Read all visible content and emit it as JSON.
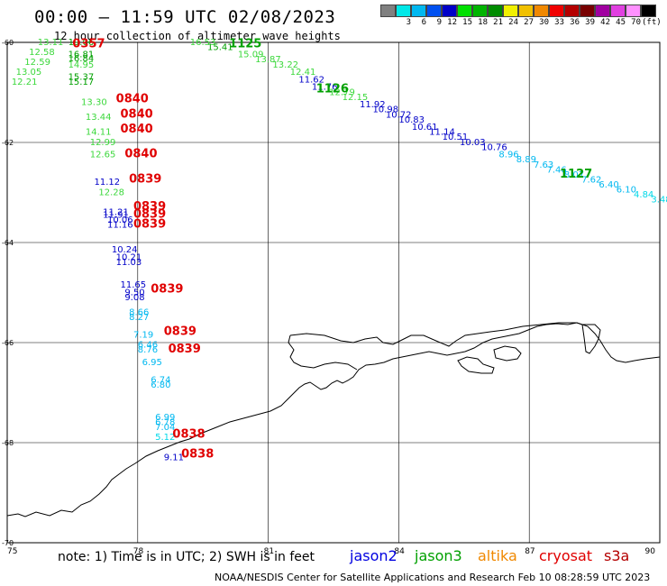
{
  "header": {
    "title": "00:00 – 11:59 UTC 02/08/2023",
    "subtitle": "12 hour collection of altimeter wave heights"
  },
  "colorbar": {
    "unit": "(ft)",
    "entries": [
      {
        "label": "",
        "color": "#808080"
      },
      {
        "label": "3",
        "color": "#00e8e8"
      },
      {
        "label": "6",
        "color": "#00b8f0"
      },
      {
        "label": "9",
        "color": "#0050f0"
      },
      {
        "label": "12",
        "color": "#0000c8"
      },
      {
        "label": "15",
        "color": "#00e000"
      },
      {
        "label": "18",
        "color": "#00b400"
      },
      {
        "label": "21",
        "color": "#008c00"
      },
      {
        "label": "24",
        "color": "#f0f000"
      },
      {
        "label": "27",
        "color": "#f0c000"
      },
      {
        "label": "30",
        "color": "#f08800"
      },
      {
        "label": "33",
        "color": "#f00000"
      },
      {
        "label": "36",
        "color": "#b40000"
      },
      {
        "label": "39",
        "color": "#780000"
      },
      {
        "label": "42",
        "color": "#a000a0"
      },
      {
        "label": "45",
        "color": "#e040e0"
      },
      {
        "label": "70",
        "color": "#ff90ff"
      },
      {
        "label": "",
        "color": "#000000"
      }
    ]
  },
  "axes": {
    "x_ticks": [
      "75",
      "78",
      "81",
      "84",
      "87",
      "90"
    ],
    "y_ticks": [
      "-60",
      "-62",
      "-64",
      "-66",
      "-68",
      "-70"
    ],
    "lon_range": [
      75,
      90
    ],
    "lat_range": [
      -60,
      -70
    ]
  },
  "time_labels": [
    {
      "text": "0357",
      "lon": 76.5,
      "lat": -60.1,
      "color": "#e00000"
    },
    {
      "text": "1125",
      "lon": 80.1,
      "lat": -60.1,
      "color": "#00a000"
    },
    {
      "text": "1126",
      "lon": 82.1,
      "lat": -61.0,
      "color": "#00a000"
    },
    {
      "text": "1127",
      "lon": 87.7,
      "lat": -62.7,
      "color": "#00a000"
    },
    {
      "text": "0840",
      "lon": 77.5,
      "lat": -61.2,
      "color": "#e00000"
    },
    {
      "text": "0840",
      "lon": 77.6,
      "lat": -61.5,
      "color": "#e00000"
    },
    {
      "text": "0840",
      "lon": 77.6,
      "lat": -61.8,
      "color": "#e00000"
    },
    {
      "text": "0840",
      "lon": 77.7,
      "lat": -62.3,
      "color": "#e00000"
    },
    {
      "text": "0839",
      "lon": 77.8,
      "lat": -62.8,
      "color": "#e00000"
    },
    {
      "text": "0839",
      "lon": 77.9,
      "lat": -63.35,
      "color": "#e00000"
    },
    {
      "text": "0839",
      "lon": 77.9,
      "lat": -63.5,
      "color": "#e00000"
    },
    {
      "text": "0839",
      "lon": 77.9,
      "lat": -63.7,
      "color": "#e00000"
    },
    {
      "text": "0839",
      "lon": 78.3,
      "lat": -65.0,
      "color": "#e00000"
    },
    {
      "text": "0839",
      "lon": 78.6,
      "lat": -65.85,
      "color": "#e00000"
    },
    {
      "text": "0839",
      "lon": 78.7,
      "lat": -66.2,
      "color": "#e00000"
    },
    {
      "text": "0838",
      "lon": 78.8,
      "lat": -67.9,
      "color": "#e00000"
    },
    {
      "text": "0838",
      "lon": 79.0,
      "lat": -68.3,
      "color": "#e00000"
    }
  ],
  "swh_labels": [
    {
      "text": "13.11",
      "lon": 75.7,
      "lat": -60.05,
      "color": "#3cd83c"
    },
    {
      "text": "19.06",
      "lon": 76.4,
      "lat": -60.05,
      "color": "#00a000"
    },
    {
      "text": "12.58",
      "lon": 75.5,
      "lat": -60.25,
      "color": "#3cd83c"
    },
    {
      "text": "16.81",
      "lon": 76.4,
      "lat": -60.3,
      "color": "#00a000"
    },
    {
      "text": "16.84",
      "lon": 76.4,
      "lat": -60.38,
      "color": "#00a000"
    },
    {
      "text": "12.59",
      "lon": 75.4,
      "lat": -60.45,
      "color": "#3cd83c"
    },
    {
      "text": "14.95",
      "lon": 76.4,
      "lat": -60.5,
      "color": "#3cd83c"
    },
    {
      "text": "13.05",
      "lon": 75.2,
      "lat": -60.65,
      "color": "#3cd83c"
    },
    {
      "text": "15.37",
      "lon": 76.4,
      "lat": -60.75,
      "color": "#00a000"
    },
    {
      "text": "12.21",
      "lon": 75.1,
      "lat": -60.85,
      "color": "#3cd83c"
    },
    {
      "text": "15.17",
      "lon": 76.4,
      "lat": -60.85,
      "color": "#00a000"
    },
    {
      "text": "16.53",
      "lon": 79.2,
      "lat": -60.05,
      "color": "#3cd83c"
    },
    {
      "text": "15.41",
      "lon": 79.6,
      "lat": -60.15,
      "color": "#00a000"
    },
    {
      "text": "15.09",
      "lon": 80.3,
      "lat": -60.3,
      "color": "#3cd83c"
    },
    {
      "text": "13.87",
      "lon": 80.7,
      "lat": -60.4,
      "color": "#3cd83c"
    },
    {
      "text": "13.22",
      "lon": 81.1,
      "lat": -60.5,
      "color": "#3cd83c"
    },
    {
      "text": "12.41",
      "lon": 81.5,
      "lat": -60.65,
      "color": "#3cd83c"
    },
    {
      "text": "11.62",
      "lon": 81.7,
      "lat": -60.8,
      "color": "#0000c8"
    },
    {
      "text": "11.76",
      "lon": 82.0,
      "lat": -60.95,
      "color": "#0000c8"
    },
    {
      "text": "12.79",
      "lon": 82.4,
      "lat": -61.05,
      "color": "#3cd83c"
    },
    {
      "text": "12.15",
      "lon": 82.7,
      "lat": -61.15,
      "color": "#3cd83c"
    },
    {
      "text": "11.92",
      "lon": 83.1,
      "lat": -61.3,
      "color": "#0000c8"
    },
    {
      "text": "10.98",
      "lon": 83.4,
      "lat": -61.4,
      "color": "#0000c8"
    },
    {
      "text": "10.72",
      "lon": 83.7,
      "lat": -61.5,
      "color": "#0000c8"
    },
    {
      "text": "10.83",
      "lon": 84.0,
      "lat": -61.6,
      "color": "#0000c8"
    },
    {
      "text": "10.61",
      "lon": 84.3,
      "lat": -61.75,
      "color": "#0000c8"
    },
    {
      "text": "11.14",
      "lon": 84.7,
      "lat": -61.85,
      "color": "#0000c8"
    },
    {
      "text": "10.51",
      "lon": 85.0,
      "lat": -61.95,
      "color": "#0000c8"
    },
    {
      "text": "10.03",
      "lon": 85.4,
      "lat": -62.05,
      "color": "#0000c8"
    },
    {
      "text": "10.76",
      "lon": 85.9,
      "lat": -62.15,
      "color": "#0000c8"
    },
    {
      "text": "8.96",
      "lon": 86.3,
      "lat": -62.3,
      "color": "#00b8f0"
    },
    {
      "text": "8.89",
      "lon": 86.7,
      "lat": -62.4,
      "color": "#00b8f0"
    },
    {
      "text": "7.63",
      "lon": 87.1,
      "lat": -62.5,
      "color": "#00b8f0"
    },
    {
      "text": "7.46",
      "lon": 87.4,
      "lat": -62.6,
      "color": "#00b8f0"
    },
    {
      "text": "8.07",
      "lon": 87.8,
      "lat": -62.7,
      "color": "#00b8f0"
    },
    {
      "text": "7.62",
      "lon": 88.2,
      "lat": -62.8,
      "color": "#00b8f0"
    },
    {
      "text": "6.40",
      "lon": 88.6,
      "lat": -62.9,
      "color": "#00b8f0"
    },
    {
      "text": "6.10",
      "lon": 89.0,
      "lat": -63.0,
      "color": "#00b8f0"
    },
    {
      "text": "4.84",
      "lon": 89.4,
      "lat": -63.1,
      "color": "#00d8e8"
    },
    {
      "text": "3.48",
      "lon": 89.8,
      "lat": -63.2,
      "color": "#00d8e8"
    },
    {
      "text": "13.30",
      "lon": 76.7,
      "lat": -61.25,
      "color": "#3cd83c"
    },
    {
      "text": "13.44",
      "lon": 76.8,
      "lat": -61.55,
      "color": "#3cd83c"
    },
    {
      "text": "14.11",
      "lon": 76.8,
      "lat": -61.85,
      "color": "#3cd83c"
    },
    {
      "text": "12.99",
      "lon": 76.9,
      "lat": -62.05,
      "color": "#3cd83c"
    },
    {
      "text": "12.65",
      "lon": 76.9,
      "lat": -62.3,
      "color": "#3cd83c"
    },
    {
      "text": "11.12",
      "lon": 77.0,
      "lat": -62.85,
      "color": "#0000c8"
    },
    {
      "text": "12.28",
      "lon": 77.1,
      "lat": -63.05,
      "color": "#3cd83c"
    },
    {
      "text": "11.21",
      "lon": 77.2,
      "lat": -63.45,
      "color": "#0000c8"
    },
    {
      "text": "11.91",
      "lon": 77.2,
      "lat": -63.5,
      "color": "#0000c8"
    },
    {
      "text": "10.06",
      "lon": 77.3,
      "lat": -63.6,
      "color": "#0000c8"
    },
    {
      "text": "11.16",
      "lon": 77.3,
      "lat": -63.7,
      "color": "#0000c8"
    },
    {
      "text": "10.24",
      "lon": 77.4,
      "lat": -64.2,
      "color": "#0000c8"
    },
    {
      "text": "10.21",
      "lon": 77.5,
      "lat": -64.35,
      "color": "#0000c8"
    },
    {
      "text": "11.03",
      "lon": 77.5,
      "lat": -64.45,
      "color": "#0000c8"
    },
    {
      "text": "11.65",
      "lon": 77.6,
      "lat": -64.9,
      "color": "#0000c8"
    },
    {
      "text": "9.50",
      "lon": 77.7,
      "lat": -65.05,
      "color": "#0000c8"
    },
    {
      "text": "9.08",
      "lon": 77.7,
      "lat": -65.15,
      "color": "#0000c8"
    },
    {
      "text": "8.66",
      "lon": 77.8,
      "lat": -65.45,
      "color": "#00b8f0"
    },
    {
      "text": "8.27",
      "lon": 77.8,
      "lat": -65.55,
      "color": "#00b8f0"
    },
    {
      "text": "7.19",
      "lon": 77.9,
      "lat": -65.9,
      "color": "#00b8f0"
    },
    {
      "text": "6.46",
      "lon": 78.0,
      "lat": -66.1,
      "color": "#00b8f0"
    },
    {
      "text": "8.76",
      "lon": 78.0,
      "lat": -66.2,
      "color": "#00b8f0"
    },
    {
      "text": "6.95",
      "lon": 78.1,
      "lat": -66.45,
      "color": "#00b8f0"
    },
    {
      "text": "6.74",
      "lon": 78.3,
      "lat": -66.8,
      "color": "#00b8f0"
    },
    {
      "text": "6.80",
      "lon": 78.3,
      "lat": -66.9,
      "color": "#00b8f0"
    },
    {
      "text": "6.99",
      "lon": 78.4,
      "lat": -67.55,
      "color": "#00b8f0"
    },
    {
      "text": "6.78",
      "lon": 78.4,
      "lat": -67.65,
      "color": "#00b8f0"
    },
    {
      "text": "7.04",
      "lon": 78.4,
      "lat": -67.75,
      "color": "#00b8f0"
    },
    {
      "text": "5.12",
      "lon": 78.4,
      "lat": -67.95,
      "color": "#00d8e8"
    },
    {
      "text": "9.11",
      "lon": 78.6,
      "lat": -68.35,
      "color": "#0000c8"
    }
  ],
  "note": "note:  1) Time is in UTC;  2) SWH is in feet",
  "satellites": [
    {
      "name": "jason2",
      "color": "#0000e0"
    },
    {
      "name": "jason3",
      "color": "#00a000"
    },
    {
      "name": "altika",
      "color": "#f08800"
    },
    {
      "name": "cryosat",
      "color": "#e00000"
    },
    {
      "name": "s3a",
      "color": "#b40000"
    }
  ],
  "credit": "NOAA/NESDIS Center for Satellite Applications and Research    Feb 10 08:28:59 UTC 2023"
}
